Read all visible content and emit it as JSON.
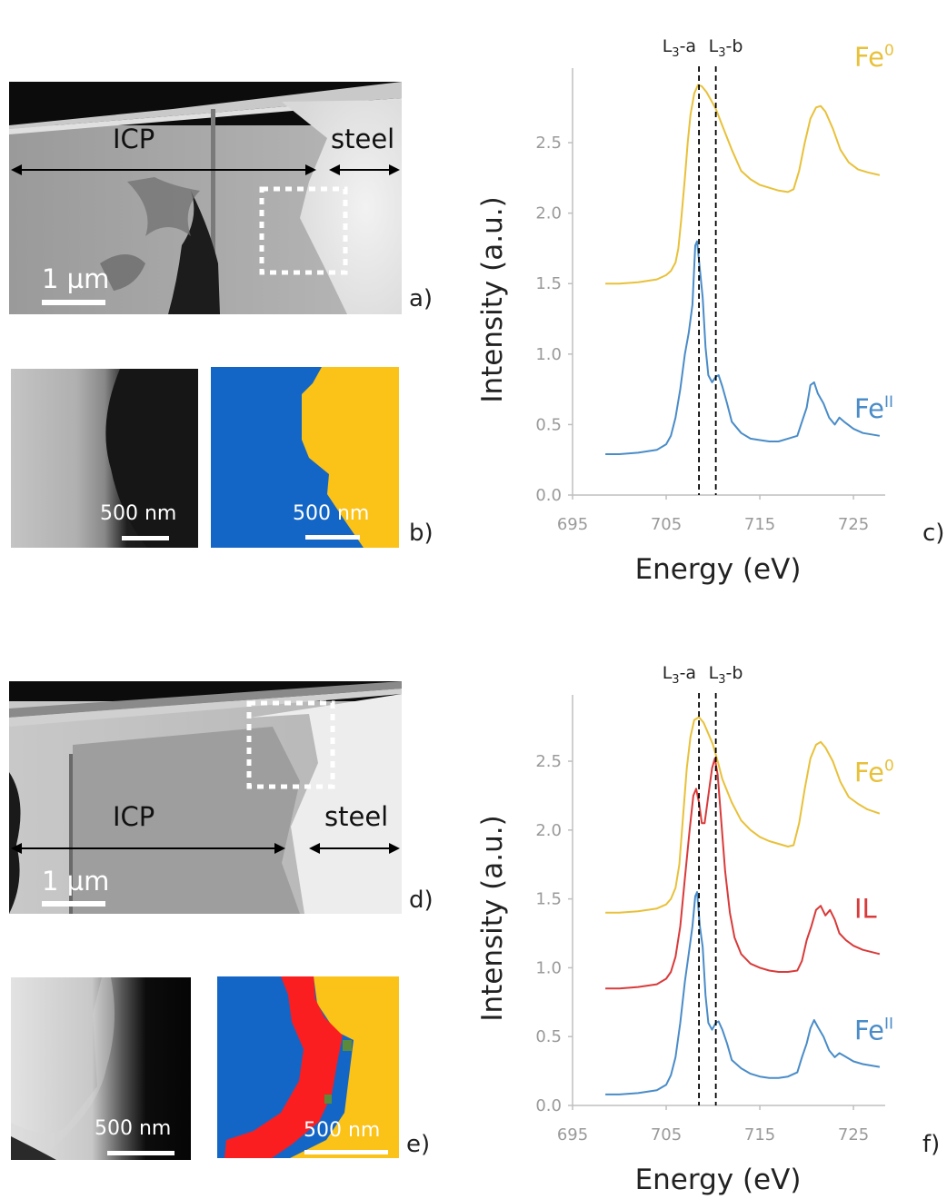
{
  "panels": {
    "a": {
      "label": "a)",
      "region_left": "ICP",
      "region_right": "steel",
      "scale_bar": "1 µm"
    },
    "b": {
      "label": "b)",
      "scale_bar_gray": "500 nm",
      "scale_bar_map": "500 nm",
      "map_colors": [
        "#1466c6",
        "#fbc218"
      ]
    },
    "c": {
      "label": "c)",
      "marker_a": "L3-a",
      "marker_b": "L3-b",
      "series_labels": [
        {
          "main": "Fe",
          "sup": "0",
          "color": "#e8c13a"
        },
        {
          "main": "Fe",
          "sup": "II",
          "color": "#4a8cc8"
        }
      ]
    },
    "d": {
      "label": "d)",
      "region_left": "ICP",
      "region_right": "steel",
      "scale_bar": "1 µm"
    },
    "e": {
      "label": "e)",
      "scale_bar_gray": "500 nm",
      "scale_bar_map": "500 nm",
      "map_colors": [
        "#1466c6",
        "#fa1e20",
        "#fbc218",
        "#5a8a3a"
      ]
    },
    "f": {
      "label": "f)",
      "marker_a": "L3-a",
      "marker_b": "L3-b",
      "series_labels": [
        {
          "main": "Fe",
          "sup": "0",
          "color": "#e8c13a"
        },
        {
          "main": "IL",
          "sup": "",
          "color": "#d93a3a"
        },
        {
          "main": "Fe",
          "sup": "II",
          "color": "#4a8cc8"
        }
      ]
    }
  },
  "chart_data": [
    {
      "type": "line",
      "panel": "c",
      "xlabel": "Energy (eV)",
      "ylabel": "Intensity (a.u.)",
      "xlim": [
        695,
        728
      ],
      "ylim": [
        0,
        2.9
      ],
      "xticks": [
        "695",
        "705",
        "715",
        "725"
      ],
      "yticks": [
        "0.0",
        "0.5",
        "1.0",
        "1.5",
        "2.0",
        "2.5"
      ],
      "vlines": [
        708.5,
        710.3
      ],
      "series": [
        {
          "name": "Fe0",
          "color": "#e8c13a",
          "x": [
            698.5,
            700,
            702,
            704,
            705,
            705.5,
            706,
            706.3,
            706.6,
            707,
            707.3,
            707.6,
            708,
            708.4,
            708.8,
            709.3,
            709.8,
            710.3,
            711,
            712,
            713,
            714,
            715,
            716,
            717,
            718,
            718.6,
            719.2,
            719.8,
            720.4,
            721,
            721.5,
            722,
            722.8,
            723.6,
            724.5,
            725.5,
            726.5,
            727.8
          ],
          "values": [
            1.5,
            1.5,
            1.51,
            1.53,
            1.56,
            1.59,
            1.65,
            1.75,
            1.95,
            2.25,
            2.5,
            2.7,
            2.85,
            2.91,
            2.9,
            2.86,
            2.8,
            2.74,
            2.62,
            2.45,
            2.3,
            2.24,
            2.2,
            2.18,
            2.16,
            2.15,
            2.17,
            2.3,
            2.5,
            2.67,
            2.75,
            2.76,
            2.72,
            2.6,
            2.45,
            2.36,
            2.31,
            2.29,
            2.27
          ]
        },
        {
          "name": "FeII",
          "color": "#4a8cc8",
          "x": [
            698.5,
            700,
            702,
            704,
            705,
            705.5,
            706,
            706.5,
            707,
            707.4,
            707.8,
            708.1,
            708.3,
            708.6,
            708.9,
            709.2,
            709.5,
            709.9,
            710.3,
            710.6,
            711,
            711.5,
            712,
            713,
            714,
            715,
            716,
            717,
            718,
            719,
            719.5,
            720,
            720.4,
            720.8,
            721.2,
            721.8,
            722.4,
            723,
            723.5,
            724,
            725,
            726,
            727.8
          ],
          "values": [
            0.29,
            0.29,
            0.3,
            0.32,
            0.36,
            0.42,
            0.55,
            0.75,
            1.0,
            1.15,
            1.35,
            1.77,
            1.8,
            1.6,
            1.4,
            1.05,
            0.85,
            0.8,
            0.84,
            0.85,
            0.77,
            0.65,
            0.52,
            0.44,
            0.4,
            0.39,
            0.38,
            0.38,
            0.4,
            0.42,
            0.52,
            0.62,
            0.78,
            0.8,
            0.72,
            0.65,
            0.55,
            0.5,
            0.55,
            0.52,
            0.47,
            0.44,
            0.42
          ]
        }
      ]
    },
    {
      "type": "line",
      "panel": "f",
      "xlabel": "Energy (eV)",
      "ylabel": "Intensity (a.u.)",
      "xlim": [
        695,
        728
      ],
      "ylim": [
        0,
        2.85
      ],
      "xticks": [
        "695",
        "705",
        "715",
        "725"
      ],
      "yticks": [
        "0.0",
        "0.5",
        "1.0",
        "1.5",
        "2.0",
        "2.5"
      ],
      "vlines": [
        708.5,
        710.3
      ],
      "series": [
        {
          "name": "Fe0",
          "color": "#e8c13a",
          "x": [
            698.5,
            700,
            702,
            704,
            705,
            705.5,
            706,
            706.4,
            706.8,
            707.2,
            707.6,
            708,
            708.5,
            709,
            709.5,
            710,
            710.5,
            711,
            712,
            713,
            714,
            715,
            716,
            717,
            718,
            718.6,
            719.2,
            719.8,
            720.4,
            721,
            721.5,
            722,
            722.8,
            723.6,
            724.5,
            725.5,
            726.5,
            727.8
          ],
          "values": [
            1.4,
            1.4,
            1.41,
            1.43,
            1.46,
            1.5,
            1.58,
            1.75,
            2.1,
            2.45,
            2.68,
            2.8,
            2.82,
            2.78,
            2.7,
            2.62,
            2.5,
            2.37,
            2.2,
            2.07,
            2.0,
            1.95,
            1.92,
            1.9,
            1.88,
            1.89,
            2.05,
            2.3,
            2.52,
            2.62,
            2.64,
            2.6,
            2.5,
            2.35,
            2.24,
            2.19,
            2.15,
            2.12
          ]
        },
        {
          "name": "IL",
          "color": "#d93a3a",
          "x": [
            698.5,
            700,
            702,
            704,
            705,
            705.5,
            706,
            706.5,
            707,
            707.5,
            707.9,
            708.2,
            708.5,
            708.8,
            709.1,
            709.5,
            709.9,
            710.2,
            710.5,
            710.9,
            711.3,
            711.8,
            712.3,
            713,
            714,
            715,
            716,
            717,
            718,
            719,
            719.5,
            720,
            720.5,
            721,
            721.5,
            722,
            722.5,
            723,
            723.5,
            724.2,
            725,
            726,
            727.8
          ],
          "values": [
            0.85,
            0.85,
            0.86,
            0.88,
            0.92,
            0.97,
            1.08,
            1.3,
            1.65,
            2.0,
            2.25,
            2.3,
            2.2,
            2.05,
            2.05,
            2.25,
            2.45,
            2.52,
            2.4,
            2.05,
            1.7,
            1.4,
            1.22,
            1.1,
            1.03,
            1.0,
            0.98,
            0.97,
            0.97,
            0.98,
            1.05,
            1.2,
            1.3,
            1.42,
            1.45,
            1.38,
            1.42,
            1.35,
            1.25,
            1.2,
            1.16,
            1.13,
            1.1
          ]
        },
        {
          "name": "FeII",
          "color": "#4a8cc8",
          "x": [
            698.5,
            700,
            702,
            704,
            705,
            705.5,
            706,
            706.5,
            707,
            707.4,
            707.8,
            708.1,
            708.3,
            708.6,
            708.9,
            709.2,
            709.5,
            709.9,
            710.3,
            710.6,
            711,
            711.5,
            712,
            713,
            714,
            715,
            716,
            717,
            718,
            719,
            719.5,
            720,
            720.4,
            720.8,
            721.2,
            721.8,
            722.4,
            723,
            723.5,
            724,
            725,
            726,
            727.8
          ],
          "values": [
            0.08,
            0.08,
            0.09,
            0.11,
            0.15,
            0.22,
            0.35,
            0.6,
            0.9,
            1.1,
            1.3,
            1.52,
            1.55,
            1.3,
            1.15,
            0.8,
            0.6,
            0.55,
            0.6,
            0.61,
            0.55,
            0.45,
            0.33,
            0.27,
            0.23,
            0.21,
            0.2,
            0.2,
            0.21,
            0.24,
            0.35,
            0.45,
            0.56,
            0.62,
            0.57,
            0.5,
            0.4,
            0.35,
            0.38,
            0.36,
            0.32,
            0.3,
            0.28
          ]
        }
      ]
    }
  ]
}
